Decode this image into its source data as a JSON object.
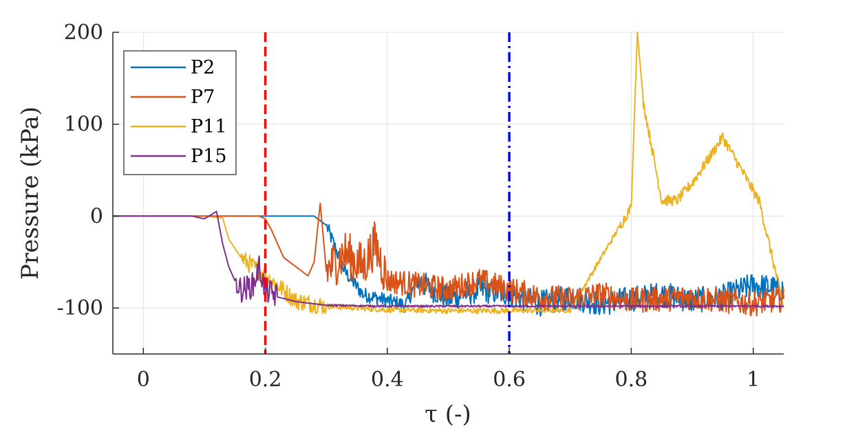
{
  "chart_data": {
    "type": "line",
    "xlabel": "τ (-)",
    "ylabel": "Pressure (kPa)",
    "xlim": [
      -0.05,
      1.05
    ],
    "ylim": [
      -150,
      200
    ],
    "x_ticks": [
      0,
      0.2,
      0.4,
      0.6,
      0.8,
      1
    ],
    "x_tick_labels": [
      "0",
      "0.2",
      "0.4",
      "0.6",
      "0.8",
      "1"
    ],
    "y_ticks": [
      -100,
      0,
      100,
      200
    ],
    "y_tick_labels": [
      "-100",
      "0",
      "100",
      "200"
    ],
    "grid": true,
    "legend_position": "top-left",
    "vertical_lines": [
      {
        "x": 0.2,
        "color": "#ff0000",
        "style": "dashed"
      },
      {
        "x": 0.6,
        "color": "#0000ff",
        "style": "dash-dot"
      }
    ],
    "series": [
      {
        "name": "P2",
        "color": "#0072BD",
        "x": [
          -0.05,
          0.28,
          0.3,
          0.33,
          0.36,
          0.4,
          0.43,
          0.45,
          0.5,
          0.55,
          0.6,
          0.65,
          0.7,
          0.75,
          0.8,
          0.85,
          0.9,
          0.95,
          1.0,
          1.05
        ],
        "y": [
          0,
          0,
          -10,
          -60,
          -85,
          -92,
          -97,
          -70,
          -90,
          -80,
          -85,
          -95,
          -88,
          -95,
          -90,
          -85,
          -92,
          -88,
          -75,
          -80
        ]
      },
      {
        "name": "P7",
        "color": "#D95319",
        "x": [
          -0.05,
          0.19,
          0.2,
          0.21,
          0.22,
          0.23,
          0.25,
          0.27,
          0.28,
          0.29,
          0.3,
          0.33,
          0.36,
          0.38,
          0.4,
          0.45,
          0.5,
          0.55,
          0.6,
          0.65,
          0.7,
          0.75,
          0.8,
          0.85,
          0.9,
          0.95,
          1.0,
          1.05
        ],
        "y": [
          0,
          0,
          -3,
          -15,
          -30,
          -45,
          -55,
          -65,
          -50,
          14,
          -60,
          -40,
          -55,
          -30,
          -70,
          -75,
          -80,
          -70,
          -80,
          -88,
          -90,
          -85,
          -92,
          -90,
          -88,
          -92,
          -95,
          -90
        ]
      },
      {
        "name": "P11",
        "color": "#EDB120",
        "x": [
          -0.05,
          0.1,
          0.13,
          0.14,
          0.16,
          0.2,
          0.22,
          0.25,
          0.3,
          0.35,
          0.4,
          0.5,
          0.6,
          0.7,
          0.8,
          0.81,
          0.82,
          0.85,
          0.875,
          0.9,
          0.95,
          1.01,
          1.05
        ],
        "y": [
          0,
          0,
          -2,
          -25,
          -45,
          -65,
          -75,
          -92,
          -98,
          -100,
          -102,
          -103,
          -103,
          -102,
          10,
          200,
          123,
          17,
          17,
          36,
          86,
          16,
          -100
        ]
      },
      {
        "name": "P15",
        "color": "#7E2F8E",
        "x": [
          -0.05,
          0.08,
          0.1,
          0.12,
          0.13,
          0.14,
          0.15,
          0.16,
          0.17,
          0.18,
          0.19,
          0.2,
          0.22,
          0.25,
          0.3,
          0.4,
          0.5,
          0.6,
          0.7,
          0.8,
          0.9,
          1.0,
          1.05
        ],
        "y": [
          0,
          0,
          -3,
          5,
          -30,
          -55,
          -70,
          -80,
          -78,
          -75,
          -55,
          -80,
          -88,
          -93,
          -97,
          -98,
          -98,
          -98,
          -98,
          -98,
          -98,
          -98,
          -98
        ]
      }
    ]
  }
}
